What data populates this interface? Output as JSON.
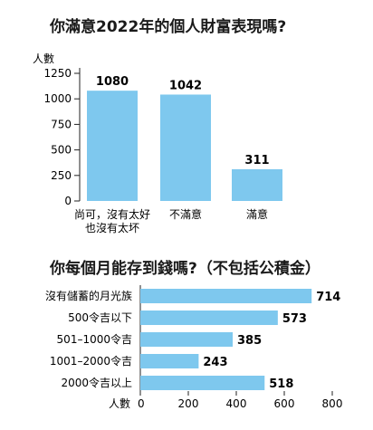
{
  "charts": {
    "c1": {
      "title": "你滿意2022年的個人財富表現嗎?",
      "chart_data": {
        "type": "bar",
        "categories": [
          "尚可，沒有太好\n也沒有太坏",
          "不滿意",
          "滿意"
        ],
        "values": [
          1080,
          1042,
          311
        ],
        "ylabel": "人數",
        "yticks": [
          0,
          250,
          500,
          750,
          1000,
          1250
        ],
        "ylim": [
          0,
          1250
        ],
        "bar_color": "#7ec8ee",
        "grid": false
      }
    },
    "c2": {
      "title": "你每個月能存到錢嗎?（不包括公積金）",
      "chart_data": {
        "type": "bar",
        "orientation": "horizontal",
        "categories": [
          "沒有儲蓄的月光族",
          "500令吉以下",
          "501–1000令吉",
          "1001–2000令吉",
          "2000令吉以上"
        ],
        "values": [
          714,
          573,
          385,
          243,
          518
        ],
        "xlabel": "人數",
        "xticks": [
          0,
          200,
          400,
          600,
          800
        ],
        "xlim": [
          0,
          800
        ],
        "bar_color": "#7ec8ee",
        "grid": false
      }
    }
  }
}
